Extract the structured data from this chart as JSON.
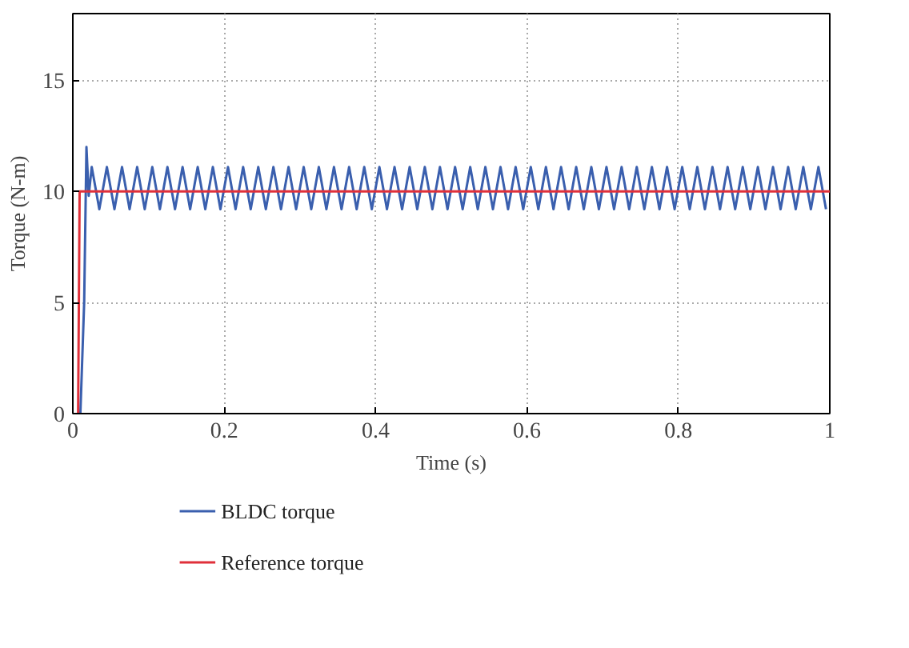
{
  "chart_data": {
    "type": "line",
    "xlabel": "Time (s)",
    "ylabel": "Torque (N-m)",
    "xlim": [
      0,
      1
    ],
    "ylim": [
      0,
      18
    ],
    "xticks": [
      0,
      0.2,
      0.4,
      0.6,
      0.8,
      1
    ],
    "yticks": [
      0,
      5,
      10,
      15
    ],
    "grid": true,
    "legend": "bottom",
    "line_style": "solid",
    "series": [
      {
        "name": "BLDC torque",
        "color": "#3a5fae",
        "x": [
          0.01,
          0.015,
          0.018,
          0.021,
          0.025,
          0.035,
          0.045,
          0.055,
          0.065,
          0.075,
          0.085,
          0.095,
          0.105,
          0.115,
          0.125,
          0.135,
          0.145,
          0.155,
          0.165,
          0.175,
          0.185,
          0.195,
          0.205,
          0.215,
          0.225,
          0.235,
          0.245,
          0.255,
          0.265,
          0.275,
          0.285,
          0.295,
          0.305,
          0.315,
          0.325,
          0.335,
          0.345,
          0.355,
          0.365,
          0.375,
          0.385,
          0.395,
          0.405,
          0.415,
          0.425,
          0.435,
          0.445,
          0.455,
          0.465,
          0.475,
          0.485,
          0.495,
          0.505,
          0.515,
          0.525,
          0.535,
          0.545,
          0.555,
          0.565,
          0.575,
          0.585,
          0.595,
          0.605,
          0.615,
          0.625,
          0.635,
          0.645,
          0.655,
          0.665,
          0.675,
          0.685,
          0.695,
          0.705,
          0.715,
          0.725,
          0.735,
          0.745,
          0.755,
          0.765,
          0.775,
          0.785,
          0.795,
          0.805,
          0.815,
          0.825,
          0.835,
          0.845,
          0.855,
          0.865,
          0.875,
          0.885,
          0.895,
          0.905,
          0.915,
          0.925,
          0.935,
          0.945,
          0.955,
          0.965,
          0.975,
          0.985,
          0.995
        ],
        "values": [
          0,
          5,
          12,
          9.8,
          11.1,
          9.2,
          11.1,
          9.2,
          11.1,
          9.2,
          11.1,
          9.2,
          11.1,
          9.2,
          11.1,
          9.2,
          11.1,
          9.2,
          11.1,
          9.2,
          11.1,
          9.2,
          11.1,
          9.2,
          11.1,
          9.2,
          11.1,
          9.2,
          11.1,
          9.2,
          11.1,
          9.2,
          11.1,
          9.2,
          11.1,
          9.2,
          11.1,
          9.2,
          11.1,
          9.2,
          11.1,
          9.2,
          11.1,
          9.2,
          11.1,
          9.2,
          11.1,
          9.2,
          11.1,
          9.2,
          11.1,
          9.2,
          11.1,
          9.2,
          11.1,
          9.2,
          11.1,
          9.2,
          11.1,
          9.2,
          11.1,
          9.2,
          11.1,
          9.2,
          11.1,
          9.2,
          11.1,
          9.2,
          11.1,
          9.2,
          11.1,
          9.2,
          11.1,
          9.2,
          11.1,
          9.2,
          11.1,
          9.2,
          11.1,
          9.2,
          11.1,
          9.2,
          11.1,
          9.2,
          11.1,
          9.2,
          11.1,
          9.2,
          11.1,
          9.2,
          11.1,
          9.2,
          11.1,
          9.2,
          11.1,
          9.2,
          11.1,
          9.2,
          11.1,
          9.2,
          11.1,
          9.2
        ]
      },
      {
        "name": "Reference torque",
        "color": "#e0303a",
        "x": [
          0.007,
          0.009,
          1
        ],
        "values": [
          0,
          10,
          10
        ]
      }
    ]
  }
}
